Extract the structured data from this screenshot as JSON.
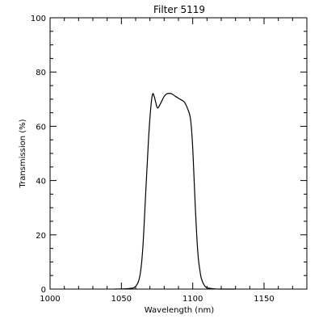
{
  "chart_data": {
    "type": "line",
    "title": "Filter 5119",
    "xlabel": "Wavelength (nm)",
    "ylabel": "Transmission (%)",
    "xlim": [
      1000,
      1180
    ],
    "ylim": [
      0,
      100
    ],
    "x_ticks": [
      1000,
      1050,
      1100,
      1150
    ],
    "x_tick_labels": [
      "1000",
      "1050",
      "1100",
      "1150"
    ],
    "y_ticks": [
      0,
      20,
      40,
      60,
      80,
      100
    ],
    "y_tick_labels": [
      "0",
      "20",
      "40",
      "60",
      "80",
      "100"
    ],
    "x_minor_step": 10,
    "y_minor_step": 5,
    "grid": false,
    "legend": "none",
    "line_color": "#000000",
    "series": [
      {
        "x": [
          1045,
          1055,
          1060,
          1063,
          1065,
          1067,
          1069,
          1070,
          1071,
          1072,
          1073,
          1074,
          1075,
          1076,
          1078,
          1080,
          1082,
          1085,
          1088,
          1091,
          1094,
          1096,
          1098,
          1099,
          1100,
          1101,
          1102,
          1103,
          1104,
          1105,
          1106,
          1108,
          1110,
          1115,
          1120,
          1130
        ],
        "y": [
          0,
          0.2,
          1,
          5,
          15,
          35,
          55,
          63,
          69,
          72,
          71,
          69,
          67,
          67,
          69,
          71,
          72,
          72,
          71,
          70,
          69,
          67,
          64,
          60,
          52,
          40,
          28,
          18,
          11,
          7,
          4,
          1.5,
          0.5,
          0.1,
          0,
          0
        ]
      }
    ]
  }
}
